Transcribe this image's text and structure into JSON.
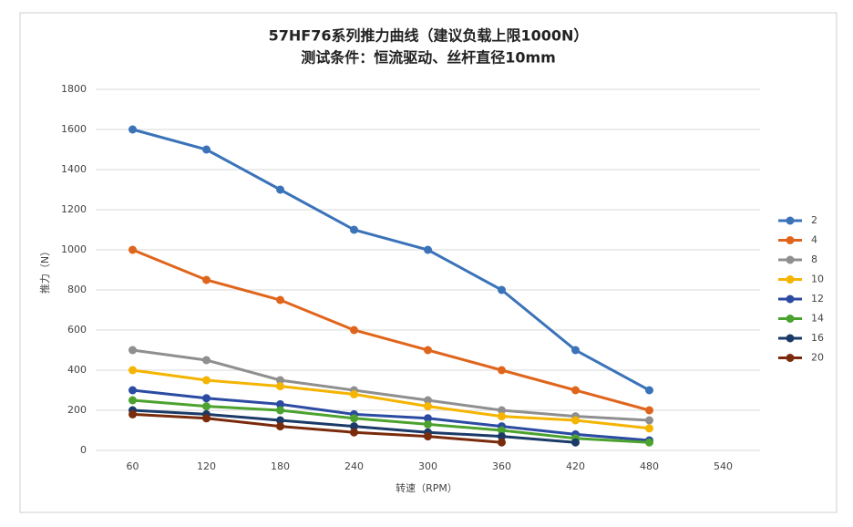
{
  "chart_data": {
    "type": "line",
    "title": "57HF76系列推力曲线（建议负载上限1000N）",
    "subtitle": "测试条件：恒流驱动、丝杆直径10mm",
    "y_label": "推力（N）",
    "x_label": "转速（RPM）",
    "categories": [
      "60",
      "120",
      "180",
      "240",
      "300",
      "360",
      "420",
      "480",
      "540"
    ],
    "series": [
      {
        "name": "2",
        "color": "#3b73b9",
        "values": [
          1600,
          1500,
          1300,
          1100,
          1000,
          800,
          500,
          300,
          null
        ]
      },
      {
        "name": "4",
        "color": "#e0651c",
        "values": [
          1000,
          850,
          750,
          600,
          500,
          400,
          300,
          200,
          null
        ]
      },
      {
        "name": "8",
        "color": "#8f8f8f",
        "values": [
          500,
          450,
          350,
          300,
          250,
          200,
          170,
          150,
          null
        ]
      },
      {
        "name": "10",
        "color": "#f4b400",
        "values": [
          400,
          350,
          320,
          280,
          220,
          170,
          150,
          110,
          null
        ]
      },
      {
        "name": "12",
        "color": "#2b4ba2",
        "values": [
          300,
          260,
          230,
          180,
          160,
          120,
          80,
          50,
          null
        ]
      },
      {
        "name": "14",
        "color": "#4ca22e",
        "values": [
          250,
          220,
          200,
          160,
          130,
          100,
          60,
          40,
          null
        ]
      },
      {
        "name": "16",
        "color": "#1b3a68",
        "values": [
          200,
          180,
          150,
          120,
          90,
          70,
          40,
          null,
          null
        ]
      },
      {
        "name": "20",
        "color": "#7a2b0c",
        "values": [
          180,
          160,
          120,
          90,
          70,
          40,
          null,
          null,
          null
        ]
      }
    ],
    "ylim": [
      0,
      1800
    ],
    "yticks": [
      0,
      200,
      400,
      600,
      800,
      1000,
      1200,
      1400,
      1600,
      1800
    ],
    "grid": true,
    "legend": "right"
  }
}
